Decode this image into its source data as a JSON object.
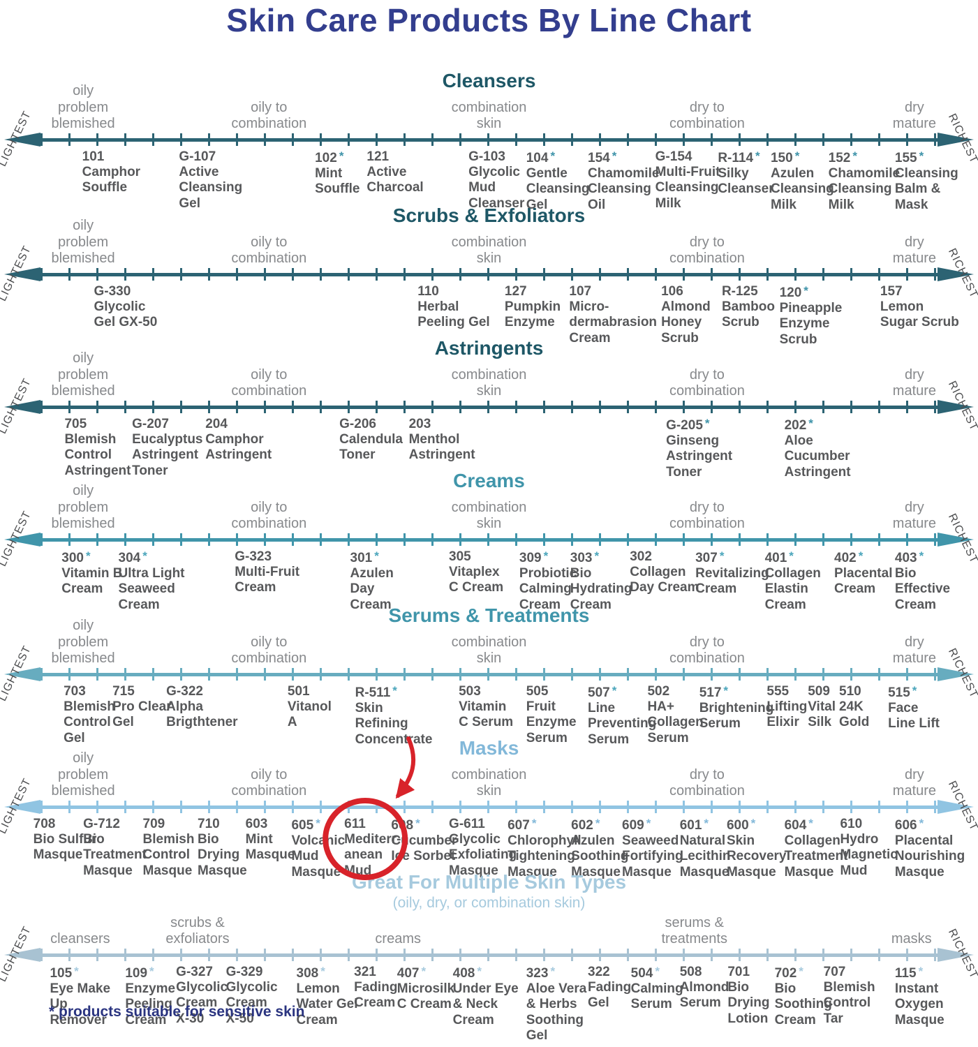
{
  "footnote": "* products suitable for sensitive skin",
  "edge_labels": {
    "left": "LIGHTEST",
    "right": "RICHEST"
  },
  "annotation": {
    "shape": "hand-drawn red circle with curved arrow",
    "color": "#d8232a",
    "target": "611 Mediterranean Mud (Masks line)"
  },
  "chart_data": {
    "type": "scatter",
    "title": "Skin Care Products By Line Chart",
    "x_axis": "Product richness along each line: LIGHTEST (left arrow) to RICHEST (right arrow)",
    "skin_type_zones": [
      "oily\nproblem\nblemished",
      "oily to\ncombination",
      "combination\nskin",
      "dry to\ncombination",
      "dry\nmature"
    ],
    "zone_positions_pct": [
      8.5,
      27.5,
      50.0,
      72.3,
      93.5
    ],
    "lines": [
      {
        "title": "Cleansers",
        "header_color": "#1e5766",
        "axis_color": "#2c6373",
        "accent_color": "#3e93a9",
        "products": [
          {
            "code": "101",
            "sensitive": false,
            "name": "Camphor\nSouffle",
            "x_pct": 8.4
          },
          {
            "code": "G-107",
            "sensitive": false,
            "name": "Active\nCleansing\nGel",
            "x_pct": 18.3
          },
          {
            "code": "102",
            "sensitive": true,
            "name": "Mint\nSouffle",
            "x_pct": 32.2
          },
          {
            "code": "121",
            "sensitive": false,
            "name": "Active\nCharcoal",
            "x_pct": 37.5
          },
          {
            "code": "G-103",
            "sensitive": false,
            "name": "Glycolic\nMud\nCleanser",
            "x_pct": 47.9
          },
          {
            "code": "104",
            "sensitive": true,
            "name": "Gentle\nCleansing\nGel",
            "x_pct": 53.8
          },
          {
            "code": "154",
            "sensitive": true,
            "name": "Chamomile\nCleansing\nOil",
            "x_pct": 60.1
          },
          {
            "code": "G-154",
            "sensitive": false,
            "name": "Multi-Fruit\nCleansing\nMilk",
            "x_pct": 67.0
          },
          {
            "code": "R-114",
            "sensitive": true,
            "name": "Silky\nCleanser",
            "x_pct": 73.4
          },
          {
            "code": "150",
            "sensitive": true,
            "name": "Azulen\nCleansing\nMilk",
            "x_pct": 78.8
          },
          {
            "code": "152",
            "sensitive": true,
            "name": "Chamomile\nCleansing\nMilk",
            "x_pct": 84.7
          },
          {
            "code": "155",
            "sensitive": true,
            "name": "Cleansing\nBalm &\nMask",
            "x_pct": 91.5
          }
        ]
      },
      {
        "title": "Scrubs & Exfoliators",
        "header_color": "#1e5766",
        "axis_color": "#2c6373",
        "accent_color": "#3e93a9",
        "products": [
          {
            "code": "G-330",
            "sensitive": false,
            "name": "Glycolic\nGel GX-50",
            "x_pct": 9.6
          },
          {
            "code": "110",
            "sensitive": false,
            "name": "Herbal\nPeeling Gel",
            "x_pct": 42.7
          },
          {
            "code": "127",
            "sensitive": false,
            "name": "Pumpkin\nEnzyme",
            "x_pct": 51.6
          },
          {
            "code": "107",
            "sensitive": false,
            "name": "Micro-\ndermabrasion\nCream",
            "x_pct": 58.2
          },
          {
            "code": "106",
            "sensitive": false,
            "name": "Almond\nHoney\nScrub",
            "x_pct": 67.6
          },
          {
            "code": "R-125",
            "sensitive": false,
            "name": "Bamboo\nScrub",
            "x_pct": 73.8
          },
          {
            "code": "120",
            "sensitive": true,
            "name": "Pineapple\nEnzyme\nScrub",
            "x_pct": 79.7
          },
          {
            "code": "157",
            "sensitive": false,
            "name": "Lemon\nSugar Scrub",
            "x_pct": 90.0
          }
        ]
      },
      {
        "title": "Astringents",
        "header_color": "#1e5766",
        "axis_color": "#2c6373",
        "accent_color": "#3e93a9",
        "products": [
          {
            "code": "705",
            "sensitive": false,
            "name": "Blemish\nControl\nAstringent",
            "x_pct": 6.6
          },
          {
            "code": "G-207",
            "sensitive": false,
            "name": "Eucalyptus\nAstringent\nToner",
            "x_pct": 13.5
          },
          {
            "code": "204",
            "sensitive": false,
            "name": "Camphor\nAstringent",
            "x_pct": 21.0
          },
          {
            "code": "G-206",
            "sensitive": false,
            "name": "Calendula\nToner",
            "x_pct": 34.7
          },
          {
            "code": "203",
            "sensitive": false,
            "name": "Menthol\nAstringent",
            "x_pct": 41.8
          },
          {
            "code": "G-205",
            "sensitive": true,
            "name": "Ginseng\nAstringent\nToner",
            "x_pct": 68.1
          },
          {
            "code": "202",
            "sensitive": true,
            "name": "Aloe\nCucumber\nAstringent",
            "x_pct": 80.2
          }
        ]
      },
      {
        "title": "Creams",
        "header_color": "#4095aa",
        "axis_color": "#4095aa",
        "accent_color": "#4aa5bb",
        "products": [
          {
            "code": "300",
            "sensitive": true,
            "name": "Vitamin B\nCream",
            "x_pct": 6.3
          },
          {
            "code": "304",
            "sensitive": true,
            "name": "Ultra Light\nSeaweed\nCream",
            "x_pct": 12.1
          },
          {
            "code": "G-323",
            "sensitive": false,
            "name": "Multi-Fruit\nCream",
            "x_pct": 24.0
          },
          {
            "code": "301",
            "sensitive": true,
            "name": "Azulen\nDay\nCream",
            "x_pct": 35.8
          },
          {
            "code": "305",
            "sensitive": false,
            "name": "Vitaplex\nC Cream",
            "x_pct": 45.9
          },
          {
            "code": "309",
            "sensitive": true,
            "name": "Probiotic\nCalming\nCream",
            "x_pct": 53.1
          },
          {
            "code": "303",
            "sensitive": true,
            "name": "Bio\nHydrating\nCream",
            "x_pct": 58.3
          },
          {
            "code": "302",
            "sensitive": false,
            "name": "Collagen\nDay Cream",
            "x_pct": 64.4
          },
          {
            "code": "307",
            "sensitive": true,
            "name": "Revitalizing\nCream",
            "x_pct": 71.1
          },
          {
            "code": "401",
            "sensitive": true,
            "name": "Collagen\nElastin\nCream",
            "x_pct": 78.2
          },
          {
            "code": "402",
            "sensitive": true,
            "name": "Placental\nCream",
            "x_pct": 85.3
          },
          {
            "code": "403",
            "sensitive": true,
            "name": "Bio\nEffective\nCream",
            "x_pct": 91.5
          }
        ]
      },
      {
        "title": "Serums & Treatments",
        "header_color": "#4095aa",
        "axis_color": "#67acbf",
        "accent_color": "#4aa5bb",
        "products": [
          {
            "code": "703",
            "sensitive": false,
            "name": "Blemish\nControl\nGel",
            "x_pct": 6.5
          },
          {
            "code": "715",
            "sensitive": false,
            "name": "Pro Clear\nGel",
            "x_pct": 11.5
          },
          {
            "code": "G-322",
            "sensitive": false,
            "name": "Alpha\nBrigthtener",
            "x_pct": 17.0
          },
          {
            "code": "501",
            "sensitive": false,
            "name": "Vitanol\nA",
            "x_pct": 29.4
          },
          {
            "code": "R-511",
            "sensitive": true,
            "name": "Skin\nRefining\nConcentrate",
            "x_pct": 36.3
          },
          {
            "code": "503",
            "sensitive": false,
            "name": "Vitamin\nC Serum",
            "x_pct": 46.9
          },
          {
            "code": "505",
            "sensitive": false,
            "name": "Fruit\nEnzyme\nSerum",
            "x_pct": 53.8
          },
          {
            "code": "507",
            "sensitive": true,
            "name": "Line\nPreventing\nSerum",
            "x_pct": 60.1
          },
          {
            "code": "502",
            "sensitive": false,
            "name": "HA+\nCollagen\nSerum",
            "x_pct": 66.2
          },
          {
            "code": "517",
            "sensitive": true,
            "name": "Brightening\nSerum",
            "x_pct": 71.5
          },
          {
            "code": "555",
            "sensitive": false,
            "name": "Lifting\nElixir",
            "x_pct": 78.4
          },
          {
            "code": "509",
            "sensitive": false,
            "name": "Vital\nSilk",
            "x_pct": 82.6
          },
          {
            "code": "510",
            "sensitive": false,
            "name": "24K\nGold",
            "x_pct": 85.8
          },
          {
            "code": "515",
            "sensitive": true,
            "name": "Face\nLine Lift",
            "x_pct": 90.8
          }
        ]
      },
      {
        "title": "Masks",
        "header_color": "#82b8d9",
        "axis_color": "#90c4e2",
        "accent_color": "#82b8d9",
        "products": [
          {
            "code": "708",
            "sensitive": false,
            "name": "Bio Sulfur\nMasque",
            "x_pct": 3.4
          },
          {
            "code": "G-712",
            "sensitive": false,
            "name": "Bio\nTreatment\nMasque",
            "x_pct": 8.5
          },
          {
            "code": "709",
            "sensitive": false,
            "name": "Blemish\nControl\nMasque",
            "x_pct": 14.6
          },
          {
            "code": "710",
            "sensitive": false,
            "name": "Bio\nDrying\nMasque",
            "x_pct": 20.2
          },
          {
            "code": "603",
            "sensitive": false,
            "name": "Mint\nMasque",
            "x_pct": 25.1
          },
          {
            "code": "605",
            "sensitive": true,
            "name": "Volcanic\nMud\nMasque",
            "x_pct": 29.8
          },
          {
            "code": "611",
            "sensitive": false,
            "name": "Mediterr-\nanean\nMud",
            "x_pct": 35.2,
            "highlighted": true
          },
          {
            "code": "608",
            "sensitive": true,
            "name": "Cucumber\nIce Sorbet",
            "x_pct": 40.0
          },
          {
            "code": "G-611",
            "sensitive": false,
            "name": "Glycolic\nExfoliating\nMasque",
            "x_pct": 45.9
          },
          {
            "code": "607",
            "sensitive": true,
            "name": "Chlorophyll\nTightening\nMasque",
            "x_pct": 51.9
          },
          {
            "code": "602",
            "sensitive": true,
            "name": "Azulen\nSoothing\nMasque",
            "x_pct": 58.4
          },
          {
            "code": "609",
            "sensitive": true,
            "name": "Seaweed\nFortifying\nMasque",
            "x_pct": 63.6
          },
          {
            "code": "601",
            "sensitive": true,
            "name": "Natural\nLecithin\nMasque",
            "x_pct": 69.5
          },
          {
            "code": "600",
            "sensitive": true,
            "name": "Skin\nRecovery\nMasque",
            "x_pct": 74.3
          },
          {
            "code": "604",
            "sensitive": true,
            "name": "Collagen\nTreatment\nMasque",
            "x_pct": 80.2
          },
          {
            "code": "610",
            "sensitive": false,
            "name": "Hydro\nMagnetic\nMud",
            "x_pct": 85.9
          },
          {
            "code": "606",
            "sensitive": true,
            "name": "Placental\nNourishing\nMasque",
            "x_pct": 91.5
          }
        ]
      },
      {
        "title": "Great For Multiple Skin Types",
        "subtitle": "(oily, dry, or combination skin)",
        "header_color": "#a6cade",
        "axis_color": "#a8c2d2",
        "accent_color": "#a6cade",
        "category_labels": [
          {
            "text": "cleansers",
            "x_pct": 8.2
          },
          {
            "text": "scrubs &\nexfoliators",
            "x_pct": 20.2
          },
          {
            "text": "creams",
            "x_pct": 40.7
          },
          {
            "text": "serums &\ntreatments",
            "x_pct": 71.0
          },
          {
            "text": "masks",
            "x_pct": 93.2
          }
        ],
        "products": [
          {
            "code": "105",
            "sensitive": true,
            "name": "Eye Make\nUp\nRemover",
            "x_pct": 5.1
          },
          {
            "code": "109",
            "sensitive": true,
            "name": "Enzyme\nPeeling\nCream",
            "x_pct": 12.8
          },
          {
            "code": "G-327",
            "sensitive": false,
            "name": "Glycolic\nCream\nX-30",
            "x_pct": 18.0
          },
          {
            "code": "G-329",
            "sensitive": false,
            "name": "Glycolic\nCream\nX-50",
            "x_pct": 23.1
          },
          {
            "code": "308",
            "sensitive": true,
            "name": "Lemon\nWater Gel\nCream",
            "x_pct": 30.3
          },
          {
            "code": "321",
            "sensitive": false,
            "name": "Fading\nCream",
            "x_pct": 36.2
          },
          {
            "code": "407",
            "sensitive": true,
            "name": "Microsilk\nC Cream",
            "x_pct": 40.6
          },
          {
            "code": "408",
            "sensitive": true,
            "name": "Under Eye\n& Neck\nCream",
            "x_pct": 46.3
          },
          {
            "code": "323",
            "sensitive": true,
            "name": "Aloe Vera\n& Herbs\nSoothing\nGel",
            "x_pct": 53.8
          },
          {
            "code": "322",
            "sensitive": false,
            "name": "Fading\nGel",
            "x_pct": 60.1
          },
          {
            "code": "504",
            "sensitive": true,
            "name": "Calming\nSerum",
            "x_pct": 64.5
          },
          {
            "code": "508",
            "sensitive": false,
            "name": "Almond\nSerum",
            "x_pct": 69.5
          },
          {
            "code": "701",
            "sensitive": false,
            "name": "Bio\nDrying\nLotion",
            "x_pct": 74.4
          },
          {
            "code": "702",
            "sensitive": true,
            "name": "Bio\nSoothing\nCream",
            "x_pct": 79.2
          },
          {
            "code": "707",
            "sensitive": false,
            "name": "Blemish\nControl\nTar",
            "x_pct": 84.2
          },
          {
            "code": "115",
            "sensitive": true,
            "name": "Instant\nOxygen\nMasque",
            "x_pct": 91.5
          }
        ]
      }
    ]
  }
}
